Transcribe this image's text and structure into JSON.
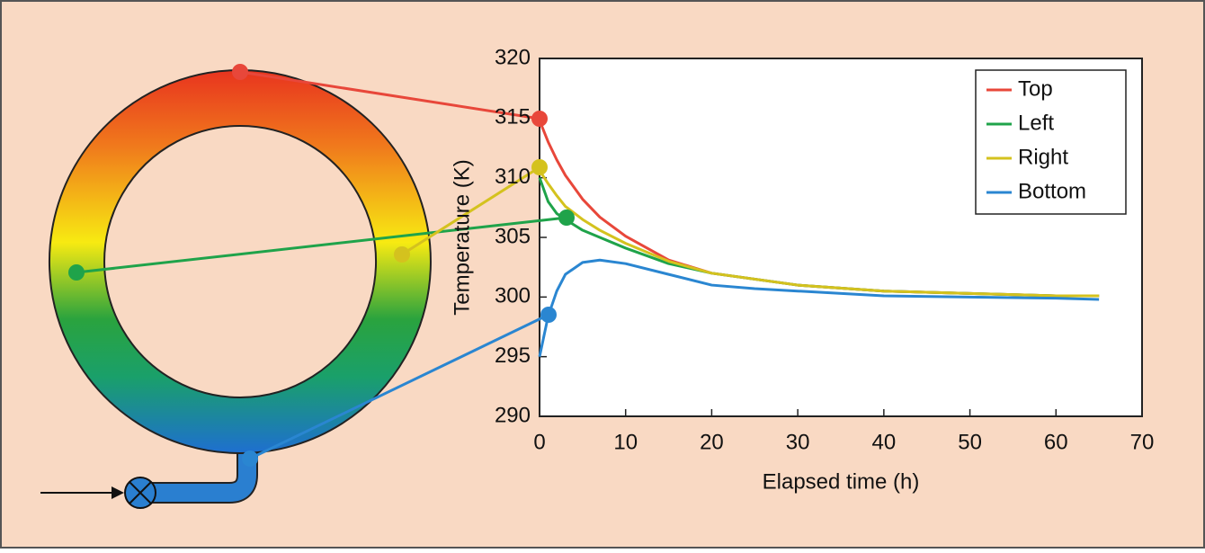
{
  "chart_data": {
    "type": "line",
    "x_label": "Elapsed time (h)",
    "y_label": "Temperature (K)",
    "x": [
      0,
      1,
      2,
      3,
      5,
      7,
      10,
      15,
      20,
      25,
      30,
      40,
      50,
      60,
      65
    ],
    "series": [
      {
        "name": "Top",
        "color": "#e8473a",
        "values": [
          314.8,
          313,
          311.5,
          310.2,
          308.2,
          306.7,
          305.1,
          303.1,
          302,
          301.5,
          301,
          300.5,
          300.3,
          300.1,
          300.1
        ]
      },
      {
        "name": "Left",
        "color": "#1fa34a",
        "values": [
          310,
          308,
          307,
          306.5,
          305.6,
          305,
          304.1,
          302.8,
          302,
          301.5,
          301,
          300.5,
          300.3,
          300.1,
          300.1
        ]
      },
      {
        "name": "Right",
        "color": "#d4c21e",
        "values": [
          310.6,
          309.5,
          308.5,
          307.6,
          306.5,
          305.6,
          304.5,
          303,
          302,
          301.5,
          301,
          300.5,
          300.3,
          300.1,
          300.1
        ]
      },
      {
        "name": "Bottom",
        "color": "#2a86d1",
        "values": [
          295,
          298.4,
          300.5,
          301.9,
          302.9,
          303.1,
          302.8,
          301.9,
          301,
          300.7,
          300.5,
          300.1,
          300,
          299.9,
          299.8
        ]
      }
    ],
    "xlim": [
      0,
      70
    ],
    "xticks": [
      0,
      10,
      20,
      30,
      40,
      50,
      60,
      70
    ],
    "ylim": [
      290,
      320
    ],
    "yticks": [
      290,
      295,
      300,
      305,
      310,
      315,
      320
    ],
    "legend": "upper right"
  }
}
